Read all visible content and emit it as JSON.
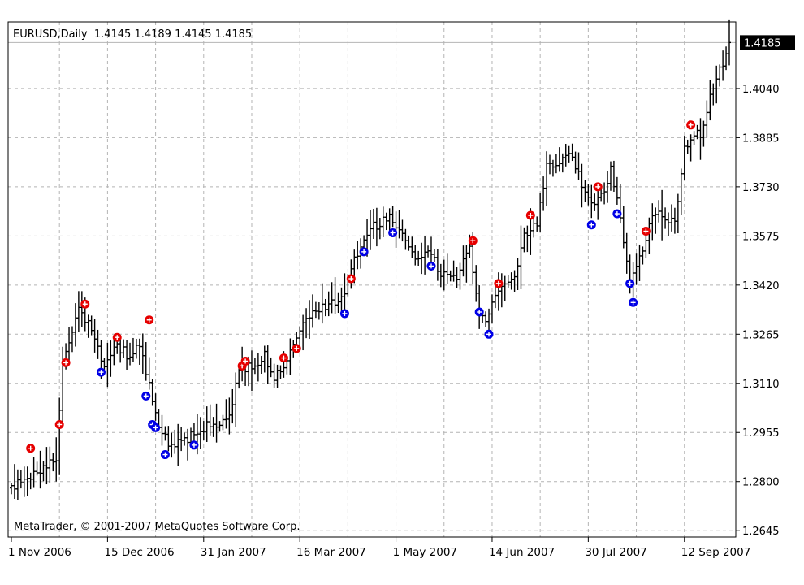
{
  "chart_data": {
    "type": "ohlc",
    "symbol": "EURUSD",
    "timeframe": "Daily",
    "header": "EURUSD,Daily  1.4145 1.4189 1.4145 1.4185",
    "last_price": "1.4185",
    "copyright": "MetaTrader, © 2001-2007 MetaQuotes Software Corp.",
    "y_ticks": [
      "1.4040",
      "1.3885",
      "1.3730",
      "1.3575",
      "1.3420",
      "1.3265",
      "1.3110",
      "1.2955",
      "1.2800",
      "1.2645"
    ],
    "ylim": [
      1.2625,
      1.425
    ],
    "x_ticks": [
      {
        "label": "1 Nov 2006",
        "bar": 0
      },
      {
        "label": "15 Dec 2006",
        "bar": 30
      },
      {
        "label": "31 Jan 2007",
        "bar": 60
      },
      {
        "label": "16 Mar 2007",
        "bar": 90
      },
      {
        "label": "1 May 2007",
        "bar": 120
      },
      {
        "label": "14 Jun 2007",
        "bar": 150
      },
      {
        "label": "30 Jul 2007",
        "bar": 180
      },
      {
        "label": "12 Sep 2007",
        "bar": 210
      }
    ],
    "bar_count": 225,
    "price_path": [
      [
        0,
        1.278
      ],
      [
        6,
        1.282
      ],
      [
        10,
        1.284
      ],
      [
        14,
        1.288
      ],
      [
        16,
        1.317
      ],
      [
        21,
        1.334
      ],
      [
        25,
        1.328
      ],
      [
        29,
        1.315
      ],
      [
        33,
        1.323
      ],
      [
        36,
        1.32
      ],
      [
        40,
        1.323
      ],
      [
        43,
        1.31
      ],
      [
        46,
        1.297
      ],
      [
        49,
        1.292
      ],
      [
        53,
        1.292
      ],
      [
        58,
        1.296
      ],
      [
        62,
        1.298
      ],
      [
        68,
        1.3
      ],
      [
        71,
        1.315
      ],
      [
        76,
        1.317
      ],
      [
        79,
        1.32
      ],
      [
        82,
        1.312
      ],
      [
        86,
        1.319
      ],
      [
        91,
        1.33
      ],
      [
        96,
        1.335
      ],
      [
        100,
        1.336
      ],
      [
        104,
        1.34
      ],
      [
        107,
        1.35
      ],
      [
        111,
        1.359
      ],
      [
        118,
        1.364
      ],
      [
        122,
        1.357
      ],
      [
        126,
        1.35
      ],
      [
        130,
        1.354
      ],
      [
        134,
        1.345
      ],
      [
        139,
        1.344
      ],
      [
        143,
        1.354
      ],
      [
        146,
        1.333
      ],
      [
        148,
        1.332
      ],
      [
        152,
        1.339
      ],
      [
        157,
        1.345
      ],
      [
        160,
        1.358
      ],
      [
        164,
        1.362
      ],
      [
        167,
        1.379
      ],
      [
        172,
        1.381
      ],
      [
        175,
        1.383
      ],
      [
        178,
        1.374
      ],
      [
        181,
        1.367
      ],
      [
        184,
        1.37
      ],
      [
        187,
        1.378
      ],
      [
        189,
        1.368
      ],
      [
        191,
        1.356
      ],
      [
        193,
        1.342
      ],
      [
        196,
        1.35
      ],
      [
        200,
        1.365
      ],
      [
        204,
        1.363
      ],
      [
        207,
        1.362
      ],
      [
        210,
        1.385
      ],
      [
        213,
        1.39
      ],
      [
        215,
        1.389
      ],
      [
        218,
        1.402
      ],
      [
        222,
        1.412
      ],
      [
        224,
        1.4185
      ]
    ],
    "red_markers": [
      [
        6,
        1.2905
      ],
      [
        15,
        1.298
      ],
      [
        17,
        1.3175
      ],
      [
        23,
        1.336
      ],
      [
        33,
        1.3255
      ],
      [
        43,
        1.331
      ],
      [
        72,
        1.3165
      ],
      [
        73,
        1.318
      ],
      [
        85,
        1.319
      ],
      [
        89,
        1.322
      ],
      [
        106,
        1.344
      ],
      [
        144,
        1.356
      ],
      [
        152,
        1.3425
      ],
      [
        162,
        1.364
      ],
      [
        183,
        1.373
      ],
      [
        198,
        1.359
      ],
      [
        212,
        1.3925
      ]
    ],
    "blue_markers": [
      [
        28,
        1.3145
      ],
      [
        42,
        1.307
      ],
      [
        44,
        1.298
      ],
      [
        45,
        1.297
      ],
      [
        48,
        1.2885
      ],
      [
        57,
        1.2915
      ],
      [
        104,
        1.333
      ],
      [
        110,
        1.3525
      ],
      [
        119,
        1.3585
      ],
      [
        131,
        1.348
      ],
      [
        146,
        1.3335
      ],
      [
        149,
        1.3265
      ],
      [
        181,
        1.361
      ],
      [
        189,
        1.3645
      ],
      [
        193,
        1.3425
      ],
      [
        194,
        1.3365
      ]
    ],
    "colors": {
      "bars": "#000000",
      "grid": "#b4b4b4",
      "red_marker": "#e60000",
      "blue_marker": "#0000e6",
      "price_label_bg": "#000000",
      "price_label_fg": "#ffffff"
    }
  }
}
